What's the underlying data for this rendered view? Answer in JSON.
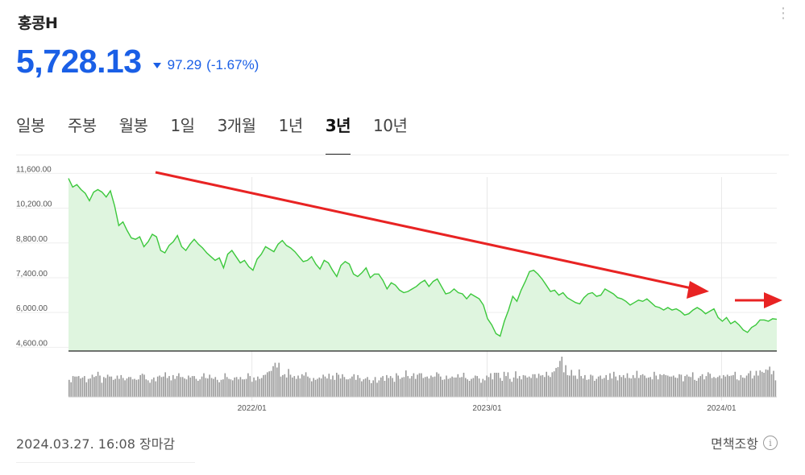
{
  "header": {
    "title": "홍콩H",
    "more_icon": "more-vertical-icon"
  },
  "quote": {
    "price": "5,728.13",
    "change": "97.29",
    "change_pct": "(-1.67%)",
    "direction": "down",
    "color": "#1a5fe6"
  },
  "tabs": [
    {
      "label": "일봉",
      "active": false
    },
    {
      "label": "주봉",
      "active": false
    },
    {
      "label": "월봉",
      "active": false
    },
    {
      "label": "1일",
      "active": false
    },
    {
      "label": "3개월",
      "active": false
    },
    {
      "label": "1년",
      "active": false
    },
    {
      "label": "3년",
      "active": true
    },
    {
      "label": "10년",
      "active": false
    }
  ],
  "chart_data": {
    "type": "area",
    "y_ticks": [
      "11,600.00",
      "10,200.00",
      "8,800.00",
      "7,400.00",
      "6,000.00",
      "4,600.00"
    ],
    "y_tick_values": [
      11600,
      10200,
      8800,
      7400,
      6000,
      4600
    ],
    "ylim": [
      4450,
      12100
    ],
    "x_ticks": [
      "2022/01",
      "2023/01",
      "2024/01"
    ],
    "x_tick_fraction": [
      0.259,
      0.591,
      0.922
    ],
    "line_color": "#3cc83c",
    "fill_color": "#dff5df",
    "price_series": [
      11400,
      11050,
      11150,
      10950,
      10800,
      10500,
      10850,
      10950,
      10850,
      10650,
      10900,
      10300,
      9500,
      9650,
      9300,
      9000,
      8950,
      9050,
      8650,
      8850,
      9150,
      9050,
      8500,
      8400,
      8700,
      8850,
      9100,
      8650,
      8500,
      8750,
      8950,
      8750,
      8600,
      8400,
      8250,
      8100,
      8200,
      7800,
      8350,
      8500,
      8250,
      8000,
      8100,
      7850,
      7700,
      8150,
      8350,
      8650,
      8550,
      8450,
      8750,
      8900,
      8700,
      8600,
      8450,
      8250,
      8050,
      8100,
      8250,
      7950,
      7750,
      8100,
      8000,
      7700,
      7450,
      7900,
      8050,
      7950,
      7550,
      7450,
      7600,
      7800,
      7400,
      7550,
      7550,
      7300,
      6950,
      7200,
      7100,
      6900,
      6800,
      6850,
      6950,
      7050,
      7200,
      7300,
      7050,
      7250,
      7350,
      7050,
      6750,
      6800,
      6950,
      6800,
      6750,
      6550,
      6750,
      6650,
      6550,
      6300,
      5750,
      5500,
      5150,
      5050,
      5650,
      6100,
      6650,
      6450,
      6900,
      7250,
      7650,
      7700,
      7550,
      7350,
      7100,
      6850,
      6900,
      6700,
      6800,
      6600,
      6500,
      6400,
      6350,
      6600,
      6750,
      6800,
      6650,
      6700,
      6950,
      6850,
      6750,
      6600,
      6550,
      6450,
      6300,
      6400,
      6500,
      6450,
      6550,
      6400,
      6250,
      6200,
      6100,
      6200,
      6100,
      6150,
      6050,
      5900,
      5950,
      6100,
      6200,
      6100,
      5950,
      6050,
      6150,
      5800,
      5650,
      5800,
      5550,
      5650,
      5500,
      5300,
      5200,
      5400,
      5500,
      5700,
      5700,
      5650,
      5750,
      5728
    ],
    "volume_series": [
      36,
      31,
      44,
      43,
      43,
      44,
      39,
      41,
      44,
      31,
      38,
      39,
      47,
      42,
      44,
      53,
      45,
      30,
      42,
      40,
      47,
      43,
      43,
      36,
      38,
      45,
      38,
      46,
      40,
      35,
      39,
      42,
      42,
      37,
      38,
      36,
      37,
      46,
      49,
      47,
      37,
      35,
      30,
      37,
      41,
      33,
      43,
      45,
      42,
      43,
      52,
      40,
      44,
      35,
      46,
      38,
      44,
      50,
      42,
      42,
      39,
      37,
      45,
      41,
      44,
      44,
      38,
      34,
      37,
      43,
      50,
      40,
      39,
      47,
      40,
      38,
      42,
      36,
      31,
      36,
      37,
      50,
      42,
      38,
      37,
      35,
      41,
      42,
      37,
      42,
      37,
      37,
      38,
      50,
      44,
      32,
      41,
      35,
      43,
      38,
      40,
      46,
      47,
      52,
      54,
      55,
      65,
      72,
      62,
      72,
      43,
      46,
      48,
      41,
      59,
      47,
      41,
      44,
      38,
      45,
      39,
      48,
      45,
      52,
      43,
      40,
      33,
      40,
      36,
      38,
      41,
      39,
      47,
      43,
      39,
      49,
      37,
      45,
      36,
      51,
      47,
      39,
      48,
      42,
      37,
      37,
      39,
      43,
      48,
      36,
      46,
      40,
      33,
      37,
      39,
      42,
      36,
      29,
      35,
      42,
      30,
      35,
      41,
      44,
      34,
      46,
      40,
      44,
      40,
      32,
      50,
      45,
      38,
      41,
      42,
      56,
      44,
      39,
      44,
      50,
      38,
      47,
      50,
      50,
      40,
      42,
      43,
      39,
      45,
      42,
      43,
      52,
      49,
      43,
      36,
      37,
      45,
      38,
      40,
      43,
      41,
      41,
      48,
      41,
      42,
      51,
      40,
      37,
      34,
      38,
      40,
      45,
      44,
      39,
      30,
      38,
      35,
      45,
      42,
      50,
      37,
      51,
      51,
      51,
      40,
      34,
      53,
      44,
      52,
      38,
      32,
      41,
      54,
      39,
      44,
      37,
      46,
      45,
      41,
      43,
      40,
      48,
      48,
      40,
      49,
      45,
      46,
      42,
      53,
      45,
      42,
      52,
      54,
      61,
      63,
      76,
      85,
      52,
      67,
      46,
      45,
      57,
      45,
      45,
      38,
      58,
      44,
      39,
      46,
      36,
      37,
      47,
      45,
      34,
      38,
      43,
      45,
      38,
      40,
      46,
      36,
      50,
      39,
      53,
      43,
      35,
      46,
      42,
      46,
      40,
      50,
      40,
      39,
      46,
      40,
      55,
      40,
      46,
      48,
      45,
      40,
      41,
      42,
      37,
      53,
      45,
      37,
      48,
      46,
      48,
      46,
      45,
      43,
      43,
      45,
      41,
      40,
      48,
      47,
      33,
      44,
      47,
      43,
      42,
      52,
      36,
      34,
      40,
      44,
      48,
      37,
      44,
      52,
      49,
      40,
      42,
      40,
      42,
      45,
      39,
      46,
      43,
      47,
      44,
      45,
      46,
      53,
      37,
      35,
      46,
      41,
      40,
      45,
      50,
      55,
      39,
      45,
      55,
      45,
      56,
      53,
      51,
      58,
      57,
      64,
      48,
      55,
      35
    ]
  },
  "annotations": [
    {
      "type": "arrow",
      "color": "#e82323"
    },
    {
      "type": "arrow",
      "color": "#e82323"
    }
  ],
  "footer": {
    "datetime": "2024.03.27. 16:08 장마감",
    "disclaimer": "면책조항",
    "info_icon": "info-icon"
  }
}
